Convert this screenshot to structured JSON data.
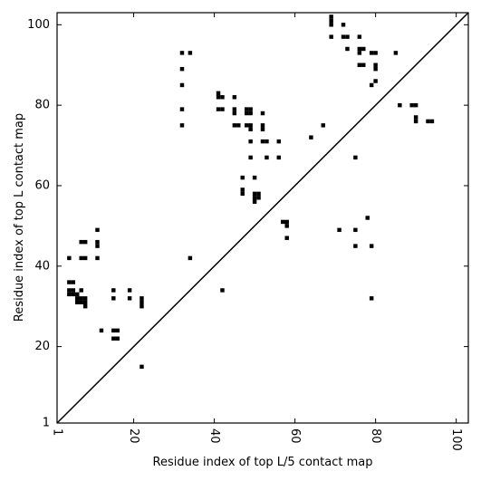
{
  "chart_data": {
    "type": "scatter",
    "xlabel": "Residue index of top L/5 contact map",
    "ylabel": "Residue index of top L contact map",
    "xlim": [
      1,
      103
    ],
    "ylim": [
      1,
      103
    ],
    "x_ticks": [
      1,
      20,
      40,
      60,
      80,
      100
    ],
    "y_ticks": [
      1,
      20,
      40,
      60,
      80,
      100
    ],
    "x_tick_labels": [
      "1",
      "20",
      "40",
      "60",
      "80",
      "100"
    ],
    "y_tick_labels": [
      "1",
      "20",
      "40",
      "60",
      "80",
      "100"
    ],
    "diagonal": [
      [
        1,
        1
      ],
      [
        103,
        103
      ]
    ],
    "marker_color": "#000000",
    "upper_triangle_points": [
      [
        32,
        93
      ],
      [
        34,
        93
      ],
      [
        32,
        89
      ],
      [
        32,
        85
      ],
      [
        32,
        79
      ],
      [
        32,
        75
      ],
      [
        41,
        83
      ],
      [
        42,
        82
      ],
      [
        41,
        82
      ],
      [
        41,
        79
      ],
      [
        42,
        79
      ],
      [
        45,
        82
      ],
      [
        45,
        79
      ],
      [
        45,
        78
      ],
      [
        45,
        75
      ],
      [
        46,
        75
      ],
      [
        48,
        79
      ],
      [
        48,
        78
      ],
      [
        49,
        79
      ],
      [
        49,
        78
      ],
      [
        48,
        75
      ],
      [
        49,
        75
      ],
      [
        49,
        74
      ],
      [
        49,
        71
      ],
      [
        49,
        67
      ],
      [
        52,
        78
      ],
      [
        52,
        75
      ],
      [
        52,
        74
      ],
      [
        52,
        71
      ],
      [
        53,
        71
      ],
      [
        53,
        67
      ],
      [
        56,
        71
      ],
      [
        56,
        67
      ],
      [
        64,
        72
      ],
      [
        67,
        75
      ],
      [
        47,
        62
      ],
      [
        50,
        62
      ],
      [
        47,
        59
      ],
      [
        47,
        58
      ],
      [
        50,
        58
      ],
      [
        50,
        57
      ],
      [
        51,
        58
      ],
      [
        51,
        57
      ],
      [
        50,
        56
      ],
      [
        57,
        51
      ],
      [
        58,
        51
      ],
      [
        58,
        50
      ],
      [
        58,
        47
      ],
      [
        69,
        102
      ],
      [
        69,
        101
      ],
      [
        69,
        100
      ],
      [
        72,
        100
      ],
      [
        69,
        97
      ],
      [
        72,
        97
      ],
      [
        73,
        97
      ],
      [
        76,
        97
      ],
      [
        73,
        94
      ],
      [
        76,
        94
      ],
      [
        77,
        94
      ],
      [
        76,
        93
      ],
      [
        79,
        93
      ],
      [
        80,
        93
      ],
      [
        85,
        93
      ],
      [
        76,
        90
      ],
      [
        77,
        90
      ],
      [
        80,
        90
      ],
      [
        80,
        89
      ],
      [
        80,
        86
      ],
      [
        79,
        85
      ],
      [
        86,
        80
      ],
      [
        89,
        80
      ],
      [
        90,
        80
      ],
      [
        90,
        77
      ],
      [
        90,
        76
      ],
      [
        93,
        76
      ],
      [
        94,
        76
      ],
      [
        75,
        67
      ]
    ],
    "lower_triangle_points": [
      [
        4,
        42
      ],
      [
        7,
        46
      ],
      [
        8,
        46
      ],
      [
        7,
        42
      ],
      [
        8,
        42
      ],
      [
        11,
        49
      ],
      [
        11,
        46
      ],
      [
        11,
        45
      ],
      [
        11,
        42
      ],
      [
        34,
        42
      ],
      [
        4,
        36
      ],
      [
        5,
        36
      ],
      [
        4,
        34
      ],
      [
        5,
        34
      ],
      [
        4,
        33
      ],
      [
        5,
        33
      ],
      [
        6,
        33
      ],
      [
        7,
        34
      ],
      [
        6,
        32
      ],
      [
        7,
        32
      ],
      [
        8,
        32
      ],
      [
        6,
        31
      ],
      [
        7,
        31
      ],
      [
        8,
        31
      ],
      [
        8,
        30
      ],
      [
        15,
        34
      ],
      [
        15,
        32
      ],
      [
        19,
        34
      ],
      [
        19,
        32
      ],
      [
        22,
        32
      ],
      [
        22,
        31
      ],
      [
        22,
        30
      ],
      [
        12,
        24
      ],
      [
        15,
        24
      ],
      [
        16,
        24
      ],
      [
        15,
        22
      ],
      [
        16,
        22
      ],
      [
        22,
        15
      ],
      [
        42,
        34
      ],
      [
        79,
        32
      ],
      [
        71,
        49
      ],
      [
        75,
        49
      ],
      [
        78,
        52
      ],
      [
        75,
        45
      ],
      [
        79,
        45
      ]
    ]
  }
}
